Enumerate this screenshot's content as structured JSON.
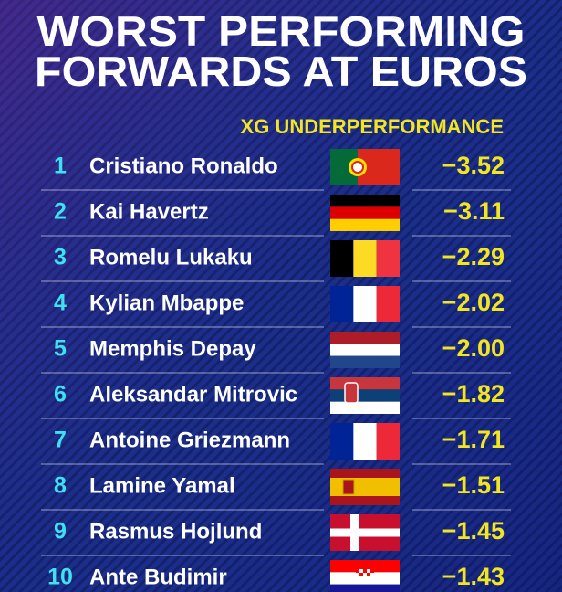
{
  "header": {
    "title_lines": [
      "WORST PERFORMING",
      "FORWARDS AT EUROS"
    ],
    "column_title": "XG UNDERPERFORMANCE"
  },
  "table": {
    "rows": [
      {
        "rank": 1,
        "name": "Cristiano Ronaldo",
        "value": "−3.52"
      },
      {
        "rank": 2,
        "name": "Kai Havertz",
        "value": "−3.11"
      },
      {
        "rank": 3,
        "name": "Romelu Lukaku",
        "value": "−2.29"
      },
      {
        "rank": 4,
        "name": "Kylian Mbappe",
        "value": "−2.02"
      },
      {
        "rank": 5,
        "name": "Memphis Depay",
        "value": "−2.00"
      },
      {
        "rank": 6,
        "name": "Aleksandar Mitrovic",
        "value": "−1.82"
      },
      {
        "rank": 7,
        "name": "Antoine Griezmann",
        "value": "−1.71"
      },
      {
        "rank": 8,
        "name": "Lamine Yamal",
        "value": "−1.51"
      },
      {
        "rank": 9,
        "name": "Rasmus Hojlund",
        "value": "−1.45"
      },
      {
        "rank": 10,
        "name": "Ante Budimir",
        "value": "−1.43"
      }
    ]
  }
}
